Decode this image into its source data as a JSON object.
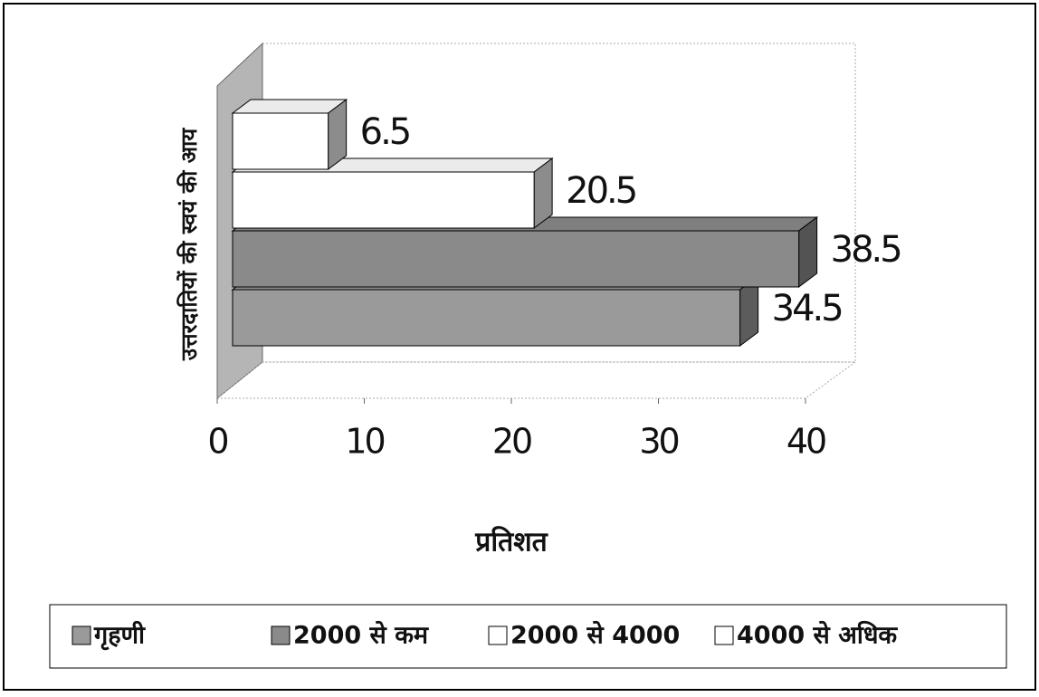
{
  "chart_data": {
    "type": "bar",
    "orientation": "horizontal",
    "xlabel": "प्रतिशत",
    "ylabel": "उत्तरदातियों की स्वयं की आय",
    "categories": [
      null
    ],
    "series": [
      {
        "name": "गृहणी",
        "color": "#9a9a9a",
        "values": [
          34.5
        ]
      },
      {
        "name": "2000 से कम",
        "color": "#8a8a8a",
        "values": [
          38.5
        ]
      },
      {
        "name": "2000 से 4000",
        "color": "#ffffff",
        "values": [
          20.5
        ]
      },
      {
        "name": "4000 से अधिक",
        "color": "#ffffff",
        "values": [
          6.5
        ]
      }
    ],
    "xlim": [
      0,
      40
    ],
    "xticks": [
      0,
      10,
      20,
      30,
      40
    ],
    "legend": "bottom"
  }
}
